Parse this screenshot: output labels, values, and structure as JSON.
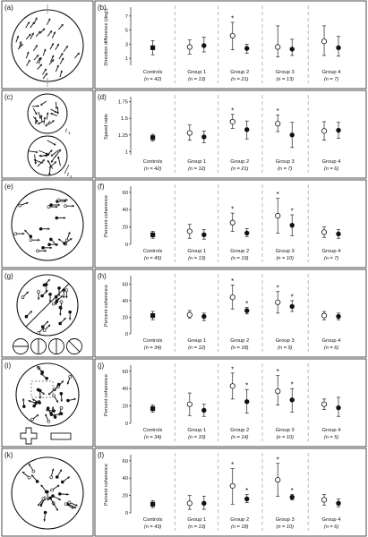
{
  "figure": {
    "panels": [
      {
        "stim_letter": "(a)",
        "plot_letter": "(b)",
        "stimulus": "coherent-motion-arrows",
        "stim_extra": "none"
      },
      {
        "stim_letter": "(c)",
        "plot_letter": "(d)",
        "stimulus": "two-speed-apertures",
        "stim_extra": "t-labels",
        "t1": "t",
        "t1_sub": "1",
        "t2": "t",
        "t2_sub": "2"
      },
      {
        "stim_letter": "(e)",
        "plot_letter": "(f)",
        "stimulus": "coherent-dots-with-trails",
        "stim_extra": "none"
      },
      {
        "stim_letter": "(g)",
        "plot_letter": "(h)",
        "stimulus": "split-aperture-dots",
        "stim_extra": "orientation-icons"
      },
      {
        "stim_letter": "(i)",
        "plot_letter": "(j)",
        "stimulus": "form-defined-dots",
        "stim_extra": "shape-icons"
      },
      {
        "stim_letter": "(k)",
        "plot_letter": "(l)",
        "stimulus": "radial-motion-dots",
        "stim_extra": "none"
      }
    ]
  },
  "chart_data": [
    {
      "type": "scatter",
      "title": "",
      "ylabel": "Direction difference (deg.)",
      "ylim": [
        0,
        8
      ],
      "yticks": [
        1,
        3,
        5,
        7
      ],
      "categories": [
        "Controls",
        "Group 1",
        "Group 2",
        "Group 3",
        "Group 4"
      ],
      "n_labels": [
        "(n = 42)",
        "(n = 13)",
        "(n = 21)",
        "(n = 13)",
        "(n = 7)"
      ],
      "series": [
        {
          "values": [
            2.5,
            2.6,
            4.2,
            2.6,
            3.4
          ],
          "err_low": [
            1.5,
            1.6,
            2.2,
            1.2,
            1.4
          ],
          "err_high": [
            3.5,
            3.6,
            6.1,
            5.6,
            5.6
          ]
        },
        {
          "values": [
            null,
            2.8,
            2.4,
            2.3,
            2.5
          ],
          "err_low": [
            null,
            1.9,
            1.7,
            1.4,
            1.3
          ],
          "err_high": [
            null,
            4.0,
            3.0,
            3.7,
            4.1
          ]
        }
      ],
      "stars": [
        {
          "group": 2,
          "series": 0,
          "label": "*"
        }
      ]
    },
    {
      "type": "scatter",
      "title": "",
      "ylabel": "Speed ratio",
      "ylim": [
        0.95,
        1.8
      ],
      "yticks": [
        1,
        1.25,
        1.5,
        1.75
      ],
      "categories": [
        "Controls",
        "Group 1",
        "Group 2",
        "Group 3",
        "Group 4"
      ],
      "n_labels": [
        "(n = 42)",
        "(n = 12)",
        "(n = 21)",
        "(n = 7)",
        "(n = 6)"
      ],
      "series": [
        {
          "values": [
            1.21,
            1.28,
            1.45,
            1.42,
            1.31
          ],
          "err_low": [
            1.16,
            1.17,
            1.35,
            1.3,
            1.17
          ],
          "err_high": [
            1.26,
            1.4,
            1.56,
            1.55,
            1.45
          ]
        },
        {
          "values": [
            null,
            1.22,
            1.33,
            1.25,
            1.32
          ],
          "err_low": [
            null,
            1.13,
            1.19,
            1.06,
            1.2
          ],
          "err_high": [
            null,
            1.31,
            1.46,
            1.44,
            1.44
          ]
        }
      ],
      "stars": [
        {
          "group": 2,
          "series": 0,
          "label": "*"
        },
        {
          "group": 3,
          "series": 0,
          "label": "*"
        }
      ]
    },
    {
      "type": "scatter",
      "title": "",
      "ylabel": "Percent coherence",
      "ylim": [
        0,
        65
      ],
      "yticks": [
        0,
        20,
        40,
        60
      ],
      "categories": [
        "Controls",
        "Group 1",
        "Group 2",
        "Group 3",
        "Group 4"
      ],
      "n_labels": [
        "(n = 45)",
        "(n = 13)",
        "(n = 19)",
        "(n = 10)",
        "(n = 7)"
      ],
      "series": [
        {
          "values": [
            11,
            15,
            25,
            33,
            14
          ],
          "err_low": [
            7,
            7,
            15,
            13,
            8
          ],
          "err_high": [
            15,
            23,
            36,
            53,
            20
          ]
        },
        {
          "values": [
            null,
            11,
            13,
            22,
            12
          ],
          "err_low": [
            null,
            6,
            9,
            10,
            7
          ],
          "err_high": [
            null,
            17,
            18,
            34,
            17
          ]
        }
      ],
      "stars": [
        {
          "group": 2,
          "series": 0,
          "label": "*"
        },
        {
          "group": 3,
          "series": 0,
          "label": "*"
        },
        {
          "group": 3,
          "series": 1,
          "label": "*"
        }
      ]
    },
    {
      "type": "scatter",
      "title": "",
      "ylabel": "Percent coherence",
      "ylim": [
        0,
        68
      ],
      "yticks": [
        0,
        20,
        40,
        60
      ],
      "categories": [
        "Controls",
        "Group 1",
        "Group 2",
        "Group 3",
        "Group 4"
      ],
      "n_labels": [
        "(n = 34)",
        "(n = 12)",
        "(n = 18)",
        "(n = 9)",
        "(n = 6)"
      ],
      "series": [
        {
          "values": [
            22,
            23,
            44,
            38,
            22
          ],
          "err_low": [
            17,
            19,
            30,
            25,
            17
          ],
          "err_high": [
            27,
            28,
            59,
            51,
            27
          ]
        },
        {
          "values": [
            null,
            21,
            28,
            33,
            21
          ],
          "err_low": [
            null,
            16,
            24,
            27,
            17
          ],
          "err_high": [
            null,
            25,
            32,
            40,
            25
          ]
        }
      ],
      "stars": [
        {
          "group": 2,
          "series": 0,
          "label": "*"
        },
        {
          "group": 2,
          "series": 1,
          "label": "*"
        },
        {
          "group": 3,
          "series": 0,
          "label": "*"
        },
        {
          "group": 3,
          "series": 1,
          "label": "*"
        }
      ]
    },
    {
      "type": "scatter",
      "title": "",
      "ylabel": "Percent coherence",
      "ylim": [
        0,
        65
      ],
      "yticks": [
        0,
        20,
        40,
        60
      ],
      "categories": [
        "Controls",
        "Group 1",
        "Group 2",
        "Group 3",
        "Group 4"
      ],
      "n_labels": [
        "(n = 34)",
        "(n = 10)",
        "(n = 14)",
        "(n = 10)",
        "(n = 5)"
      ],
      "series": [
        {
          "values": [
            17,
            22,
            43,
            37,
            22
          ],
          "err_low": [
            13,
            9,
            28,
            21,
            16
          ],
          "err_high": [
            21,
            35,
            58,
            55,
            28
          ]
        },
        {
          "values": [
            null,
            15,
            25,
            27,
            18
          ],
          "err_low": [
            null,
            8,
            12,
            13,
            8
          ],
          "err_high": [
            null,
            22,
            39,
            40,
            30
          ]
        }
      ],
      "stars": [
        {
          "group": 2,
          "series": 0,
          "label": "*"
        },
        {
          "group": 2,
          "series": 1,
          "label": "*"
        },
        {
          "group": 3,
          "series": 0,
          "label": "*"
        },
        {
          "group": 3,
          "series": 1,
          "label": "*"
        }
      ]
    },
    {
      "type": "scatter",
      "title": "",
      "ylabel": "Percent coherence",
      "ylim": [
        0,
        65
      ],
      "yticks": [
        0,
        20,
        40,
        60
      ],
      "categories": [
        "Controls",
        "Group 1",
        "Group 2",
        "Group 3",
        "Group 4"
      ],
      "n_labels": [
        "(n = 43)",
        "(n = 13)",
        "(n = 18)",
        "(n = 10)",
        "(n = 6)"
      ],
      "series": [
        {
          "values": [
            10,
            11,
            31,
            38,
            15
          ],
          "err_low": [
            6,
            4,
            10,
            19,
            9
          ],
          "err_high": [
            14,
            20,
            51,
            57,
            21
          ]
        },
        {
          "values": [
            null,
            11,
            16,
            18,
            11
          ],
          "err_low": [
            null,
            4,
            12,
            15,
            7
          ],
          "err_high": [
            null,
            19,
            21,
            21,
            16
          ]
        }
      ],
      "stars": [
        {
          "group": 2,
          "series": 0,
          "label": "*"
        },
        {
          "group": 2,
          "series": 1,
          "label": "*"
        },
        {
          "group": 3,
          "series": 0,
          "label": "*"
        },
        {
          "group": 3,
          "series": 1,
          "label": "*"
        }
      ]
    }
  ]
}
